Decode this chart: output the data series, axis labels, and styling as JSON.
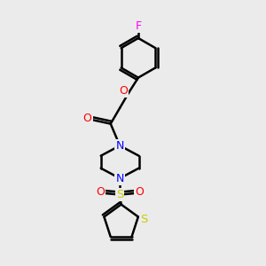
{
  "bg_color": "#ebebeb",
  "bond_color": "#000000",
  "bond_width": 1.8,
  "atom_colors": {
    "O": "#ff0000",
    "N": "#0000ff",
    "S_sulfonyl": "#cccc00",
    "S_thiophene": "#cccc00",
    "F": "#ff00ff",
    "C": "#000000"
  },
  "figsize": [
    3.0,
    3.0
  ],
  "dpi": 100
}
